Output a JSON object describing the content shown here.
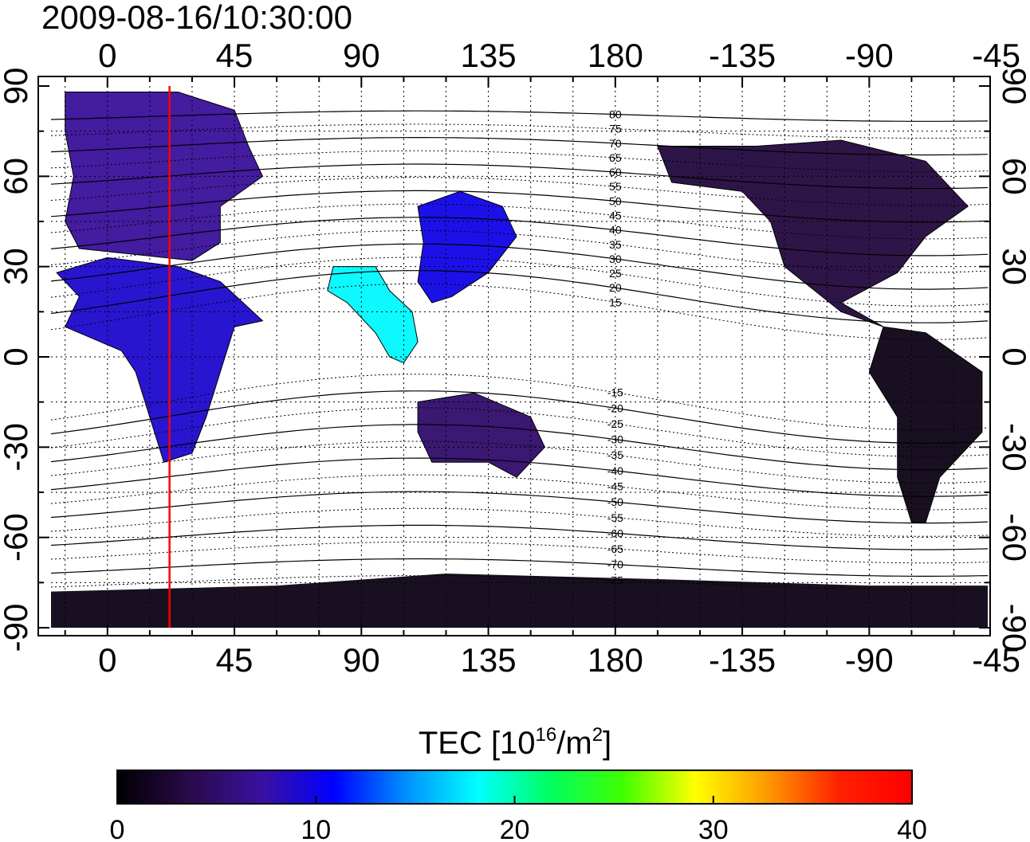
{
  "title": "2009-08-16/10:30:00",
  "map": {
    "lon_ticks_top": [
      "0",
      "45",
      "90",
      "135",
      "180",
      "-135",
      "-90",
      "-45"
    ],
    "lon_ticks_bottom": [
      "0",
      "45",
      "90",
      "135",
      "180",
      "-135",
      "-90",
      "-45"
    ],
    "lat_ticks_left": [
      "90",
      "60",
      "30",
      "0",
      "-30",
      "-60",
      "-90"
    ],
    "lat_ticks_right": [
      "90",
      "60",
      "30",
      "0",
      "-30",
      "-60",
      "-90"
    ],
    "lon_range": [
      -20,
      312
    ],
    "lat_range": [
      -90,
      90
    ],
    "grid": "dotted",
    "marker_line_lon": 22,
    "marker_line_color": "#ff0000",
    "contour_labels_north": [
      "80",
      "75",
      "70",
      "65",
      "60",
      "55",
      "50",
      "45",
      "40",
      "35",
      "30",
      "25",
      "20",
      "15"
    ],
    "contour_labels_south": [
      "-15",
      "-20",
      "-25",
      "-30",
      "-35",
      "-40",
      "-45",
      "-50",
      "-55",
      "-60",
      "-65",
      "-70",
      "-75"
    ]
  },
  "colorbar": {
    "label_main": "TEC  [10",
    "label_sup1": "16",
    "label_mid": "/m",
    "label_sup2": "2",
    "label_end": "]",
    "ticks": [
      "0",
      "10",
      "20",
      "30",
      "40"
    ],
    "range": [
      0,
      40
    ],
    "colors": [
      "#000000",
      "#2a0a4a",
      "#3a10a0",
      "#0000ff",
      "#0090ff",
      "#00ffff",
      "#00ff60",
      "#40ff00",
      "#ffff00",
      "#ff9900",
      "#ff2000",
      "#ff0000"
    ]
  },
  "regions": [
    {
      "name": "europe",
      "tec": 7
    },
    {
      "name": "africa",
      "tec": 9
    },
    {
      "name": "south-asia",
      "tec": 18
    },
    {
      "name": "east-asia",
      "tec": 10
    },
    {
      "name": "australia",
      "tec": 5
    },
    {
      "name": "north-america",
      "tec": 3
    },
    {
      "name": "south-america",
      "tec": 1
    },
    {
      "name": "antarctica",
      "tec": 1
    }
  ]
}
